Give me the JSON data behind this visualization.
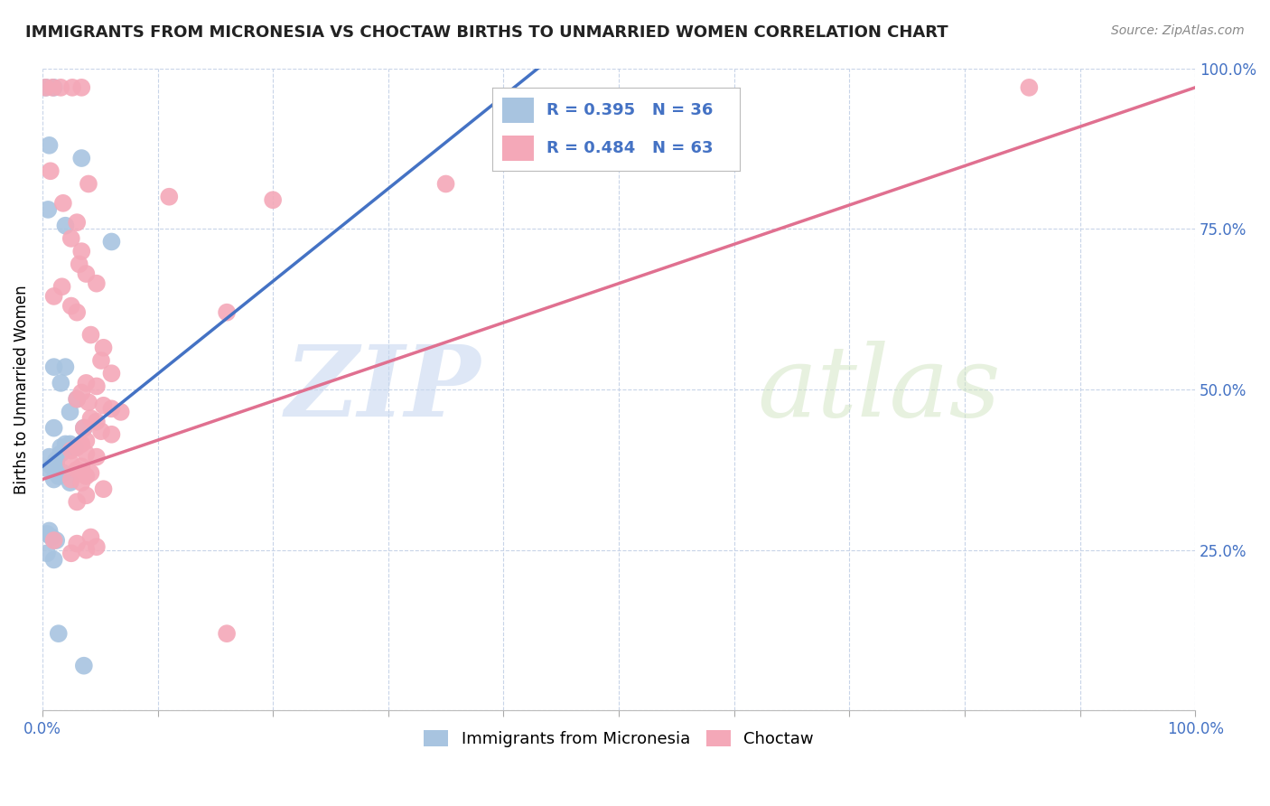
{
  "title": "IMMIGRANTS FROM MICRONESIA VS CHOCTAW BIRTHS TO UNMARRIED WOMEN CORRELATION CHART",
  "source": "Source: ZipAtlas.com",
  "ylabel": "Births to Unmarried Women",
  "xlim": [
    0.0,
    1.0
  ],
  "ylim": [
    0.0,
    1.0
  ],
  "blue_color": "#a8c4e0",
  "pink_color": "#f4a8b8",
  "blue_line_color": "#4472c4",
  "pink_line_color": "#e07090",
  "watermark_zip": "ZIP",
  "watermark_atlas": "atlas",
  "legend_R_blue": "R = 0.395",
  "legend_N_blue": "N = 36",
  "legend_R_pink": "R = 0.484",
  "legend_N_pink": "N = 63",
  "legend_label_blue": "Immigrants from Micronesia",
  "legend_label_pink": "Choctaw",
  "blue_points": [
    [
      0.003,
      0.97
    ],
    [
      0.01,
      0.97
    ],
    [
      0.006,
      0.88
    ],
    [
      0.034,
      0.86
    ],
    [
      0.005,
      0.78
    ],
    [
      0.02,
      0.755
    ],
    [
      0.06,
      0.73
    ],
    [
      0.01,
      0.535
    ],
    [
      0.02,
      0.535
    ],
    [
      0.016,
      0.51
    ],
    [
      0.03,
      0.485
    ],
    [
      0.024,
      0.465
    ],
    [
      0.01,
      0.44
    ],
    [
      0.036,
      0.44
    ],
    [
      0.02,
      0.415
    ],
    [
      0.016,
      0.41
    ],
    [
      0.024,
      0.415
    ],
    [
      0.028,
      0.41
    ],
    [
      0.016,
      0.4
    ],
    [
      0.006,
      0.395
    ],
    [
      0.012,
      0.39
    ],
    [
      0.012,
      0.385
    ],
    [
      0.008,
      0.38
    ],
    [
      0.006,
      0.375
    ],
    [
      0.018,
      0.37
    ],
    [
      0.014,
      0.365
    ],
    [
      0.01,
      0.36
    ],
    [
      0.024,
      0.355
    ],
    [
      0.006,
      0.28
    ],
    [
      0.004,
      0.275
    ],
    [
      0.008,
      0.27
    ],
    [
      0.012,
      0.265
    ],
    [
      0.004,
      0.245
    ],
    [
      0.01,
      0.235
    ],
    [
      0.014,
      0.12
    ],
    [
      0.036,
      0.07
    ]
  ],
  "pink_points": [
    [
      0.003,
      0.97
    ],
    [
      0.009,
      0.97
    ],
    [
      0.016,
      0.97
    ],
    [
      0.026,
      0.97
    ],
    [
      0.034,
      0.97
    ],
    [
      0.856,
      0.97
    ],
    [
      0.007,
      0.84
    ],
    [
      0.04,
      0.82
    ],
    [
      0.11,
      0.8
    ],
    [
      0.2,
      0.795
    ],
    [
      0.35,
      0.82
    ],
    [
      0.018,
      0.79
    ],
    [
      0.03,
      0.76
    ],
    [
      0.025,
      0.735
    ],
    [
      0.034,
      0.715
    ],
    [
      0.032,
      0.695
    ],
    [
      0.038,
      0.68
    ],
    [
      0.047,
      0.665
    ],
    [
      0.017,
      0.66
    ],
    [
      0.01,
      0.645
    ],
    [
      0.025,
      0.63
    ],
    [
      0.03,
      0.62
    ],
    [
      0.042,
      0.585
    ],
    [
      0.16,
      0.62
    ],
    [
      0.053,
      0.565
    ],
    [
      0.051,
      0.545
    ],
    [
      0.06,
      0.525
    ],
    [
      0.038,
      0.51
    ],
    [
      0.047,
      0.505
    ],
    [
      0.034,
      0.495
    ],
    [
      0.03,
      0.485
    ],
    [
      0.04,
      0.48
    ],
    [
      0.053,
      0.475
    ],
    [
      0.06,
      0.47
    ],
    [
      0.068,
      0.465
    ],
    [
      0.042,
      0.455
    ],
    [
      0.047,
      0.45
    ],
    [
      0.036,
      0.44
    ],
    [
      0.051,
      0.435
    ],
    [
      0.06,
      0.43
    ],
    [
      0.038,
      0.42
    ],
    [
      0.034,
      0.415
    ],
    [
      0.03,
      0.41
    ],
    [
      0.025,
      0.405
    ],
    [
      0.038,
      0.4
    ],
    [
      0.047,
      0.395
    ],
    [
      0.025,
      0.385
    ],
    [
      0.034,
      0.38
    ],
    [
      0.03,
      0.375
    ],
    [
      0.042,
      0.37
    ],
    [
      0.038,
      0.365
    ],
    [
      0.025,
      0.36
    ],
    [
      0.034,
      0.355
    ],
    [
      0.053,
      0.345
    ],
    [
      0.038,
      0.335
    ],
    [
      0.03,
      0.325
    ],
    [
      0.042,
      0.27
    ],
    [
      0.01,
      0.265
    ],
    [
      0.03,
      0.26
    ],
    [
      0.047,
      0.255
    ],
    [
      0.038,
      0.25
    ],
    [
      0.025,
      0.245
    ],
    [
      0.16,
      0.12
    ]
  ],
  "blue_line": {
    "x0": 0.0,
    "y0": 0.38,
    "x1": 0.43,
    "y1": 1.0
  },
  "pink_line": {
    "x0": 0.0,
    "y0": 0.36,
    "x1": 1.0,
    "y1": 0.97
  }
}
